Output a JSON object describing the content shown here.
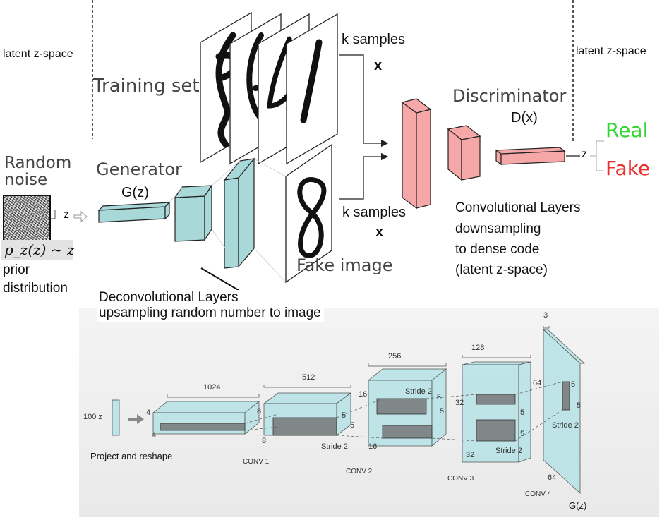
{
  "top": {
    "latent_left": "latent z-space",
    "latent_right": "latent z-space",
    "training_set": "Training set",
    "k_samples_top": "k samples",
    "x_top": "x",
    "k_samples_bottom": "k samples",
    "x_bottom": "x",
    "discriminator": "Discriminator",
    "d_of_x": "D(x)",
    "real": "Real",
    "fake": "Fake",
    "z_right": "z",
    "random_noise_1": "Random",
    "random_noise_2": "noise",
    "z_left": "z",
    "generator": "Generator",
    "g_of_z": "G(z)",
    "fake_image": "Fake image",
    "prior_formula": "p_z(z) ~ z",
    "prior_1": "prior",
    "prior_2": "distribution",
    "conv_desc": [
      "Convolutional Layers",
      "downsampling",
      "to dense code",
      "(latent z-space)"
    ],
    "deconv_desc": [
      "Deconvolutional Layers",
      "upsampling random number to image"
    ]
  },
  "colors": {
    "real": "#33d633",
    "fake": "#e8322e",
    "gen_fill": "#a8d8d8",
    "disc_fill": "#f6a8a8"
  },
  "dcgan": {
    "input": "100 z",
    "project": "Project and reshape",
    "block0": {
      "width": "1024",
      "side1": "4",
      "side2": "4"
    },
    "conv1": {
      "label": "CONV 1",
      "width": "512",
      "side1": "8",
      "side2": "8",
      "k1": "5",
      "k2": "5",
      "stride": "Stride 2"
    },
    "conv2": {
      "label": "CONV 2",
      "width": "256",
      "side1": "16",
      "side2": "16",
      "k1": "5",
      "k2": "5",
      "stride": "Stride 2"
    },
    "conv3": {
      "label": "CONV 3",
      "width": "128",
      "side1": "32",
      "side2": "32",
      "k1": "5",
      "k2": "5",
      "stride": "Stride 2"
    },
    "conv4": {
      "label": "CONV 4",
      "width": "3",
      "side1": "64",
      "side2": "64",
      "k1": "5",
      "k2": "5",
      "stride": "Stride 2"
    },
    "output": "G(z)"
  }
}
